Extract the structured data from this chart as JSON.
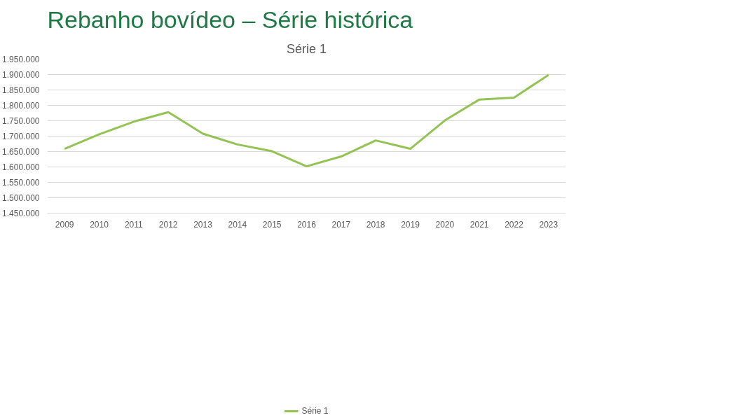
{
  "chart_data": {
    "type": "line",
    "title": "Rebanho bovídeo – Série histórica",
    "subtitle": "Série 1",
    "categories": [
      "2009",
      "2010",
      "2011",
      "2012",
      "2013",
      "2014",
      "2015",
      "2016",
      "2017",
      "2018",
      "2019",
      "2020",
      "2021",
      "2022",
      "2023"
    ],
    "series": [
      {
        "name": "Série 1",
        "color": "#92c353",
        "values": [
          1659000,
          1706000,
          1747000,
          1778000,
          1708000,
          1673000,
          1651000,
          1602000,
          1634000,
          1686000,
          1659000,
          1751000,
          1819000,
          1825000,
          1899000
        ]
      }
    ],
    "ylim": [
      1450000,
      1950000
    ],
    "yticks": [
      {
        "value": 1450000,
        "label": "1.450.000"
      },
      {
        "value": 1500000,
        "label": "1.500.000"
      },
      {
        "value": 1550000,
        "label": "1.550.000"
      },
      {
        "value": 1600000,
        "label": "1.600.000"
      },
      {
        "value": 1650000,
        "label": "1.650.000"
      },
      {
        "value": 1700000,
        "label": "1.700.000"
      },
      {
        "value": 1750000,
        "label": "1.750.000"
      },
      {
        "value": 1800000,
        "label": "1.800.000"
      },
      {
        "value": 1850000,
        "label": "1.850.000"
      },
      {
        "value": 1900000,
        "label": "1.900.000"
      },
      {
        "value": 1950000,
        "label": "1.950.000"
      }
    ],
    "grid": "y",
    "legend": "bottom",
    "marker": "none",
    "line_style": "solid"
  }
}
